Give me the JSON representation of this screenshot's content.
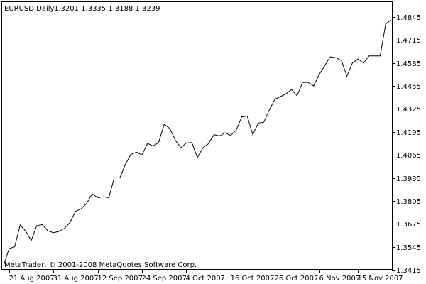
{
  "chart_data": {
    "type": "line",
    "title": "EURUSD,Daily",
    "ohlc_readout": "1.3201 1.3335 1.3188 1.3239",
    "watermark": "MetaTrader, © 2001-2008 MetaQuotes Software Corp.",
    "xlabel": "",
    "ylabel": "",
    "ylim": [
      1.3415,
      1.4845
    ],
    "y_ticks": [
      "1.4845",
      "1.4715",
      "1.4585",
      "1.4455",
      "1.4325",
      "1.4195",
      "1.4065",
      "1.3935",
      "1.3805",
      "1.3675",
      "1.3545",
      "1.3415"
    ],
    "x_ticks": [
      "21 Aug 2007",
      "31 Aug 2007",
      "12 Sep 2007",
      "24 Sep 2007",
      "4 Oct 2007",
      "16 Oct 2007",
      "26 Oct 2007",
      "6 Nov 2007",
      "15 Nov 2007"
    ],
    "x_tick_index": [
      1,
      9,
      17,
      25,
      33,
      41,
      49,
      57,
      64
    ],
    "grid": false,
    "line_color": "#000000",
    "background_color": "#ffffff",
    "series": [
      {
        "values": [
          1.3438,
          1.3535,
          1.3545,
          1.3668,
          1.3633,
          1.358,
          1.3665,
          1.367,
          1.3635,
          1.3625,
          1.3632,
          1.365,
          1.3683,
          1.3745,
          1.376,
          1.379,
          1.3845,
          1.3823,
          1.3828,
          1.3823,
          1.3935,
          1.3935,
          1.4012,
          1.4068,
          1.408,
          1.4065,
          1.413,
          1.4115,
          1.4135,
          1.4238,
          1.4215,
          1.415,
          1.4105,
          1.4132,
          1.4135,
          1.405,
          1.4105,
          1.4128,
          1.418,
          1.4172,
          1.419,
          1.4175,
          1.4205,
          1.428,
          1.4285,
          1.418,
          1.4245,
          1.425,
          1.432,
          1.438,
          1.4395,
          1.441,
          1.4435,
          1.44,
          1.4475,
          1.4475,
          1.4455,
          1.452,
          1.457,
          1.462,
          1.4615,
          1.46,
          1.451,
          1.4585,
          1.4608,
          1.4585,
          1.4625,
          1.4625,
          1.4625,
          1.4805,
          1.483
        ]
      }
    ]
  }
}
